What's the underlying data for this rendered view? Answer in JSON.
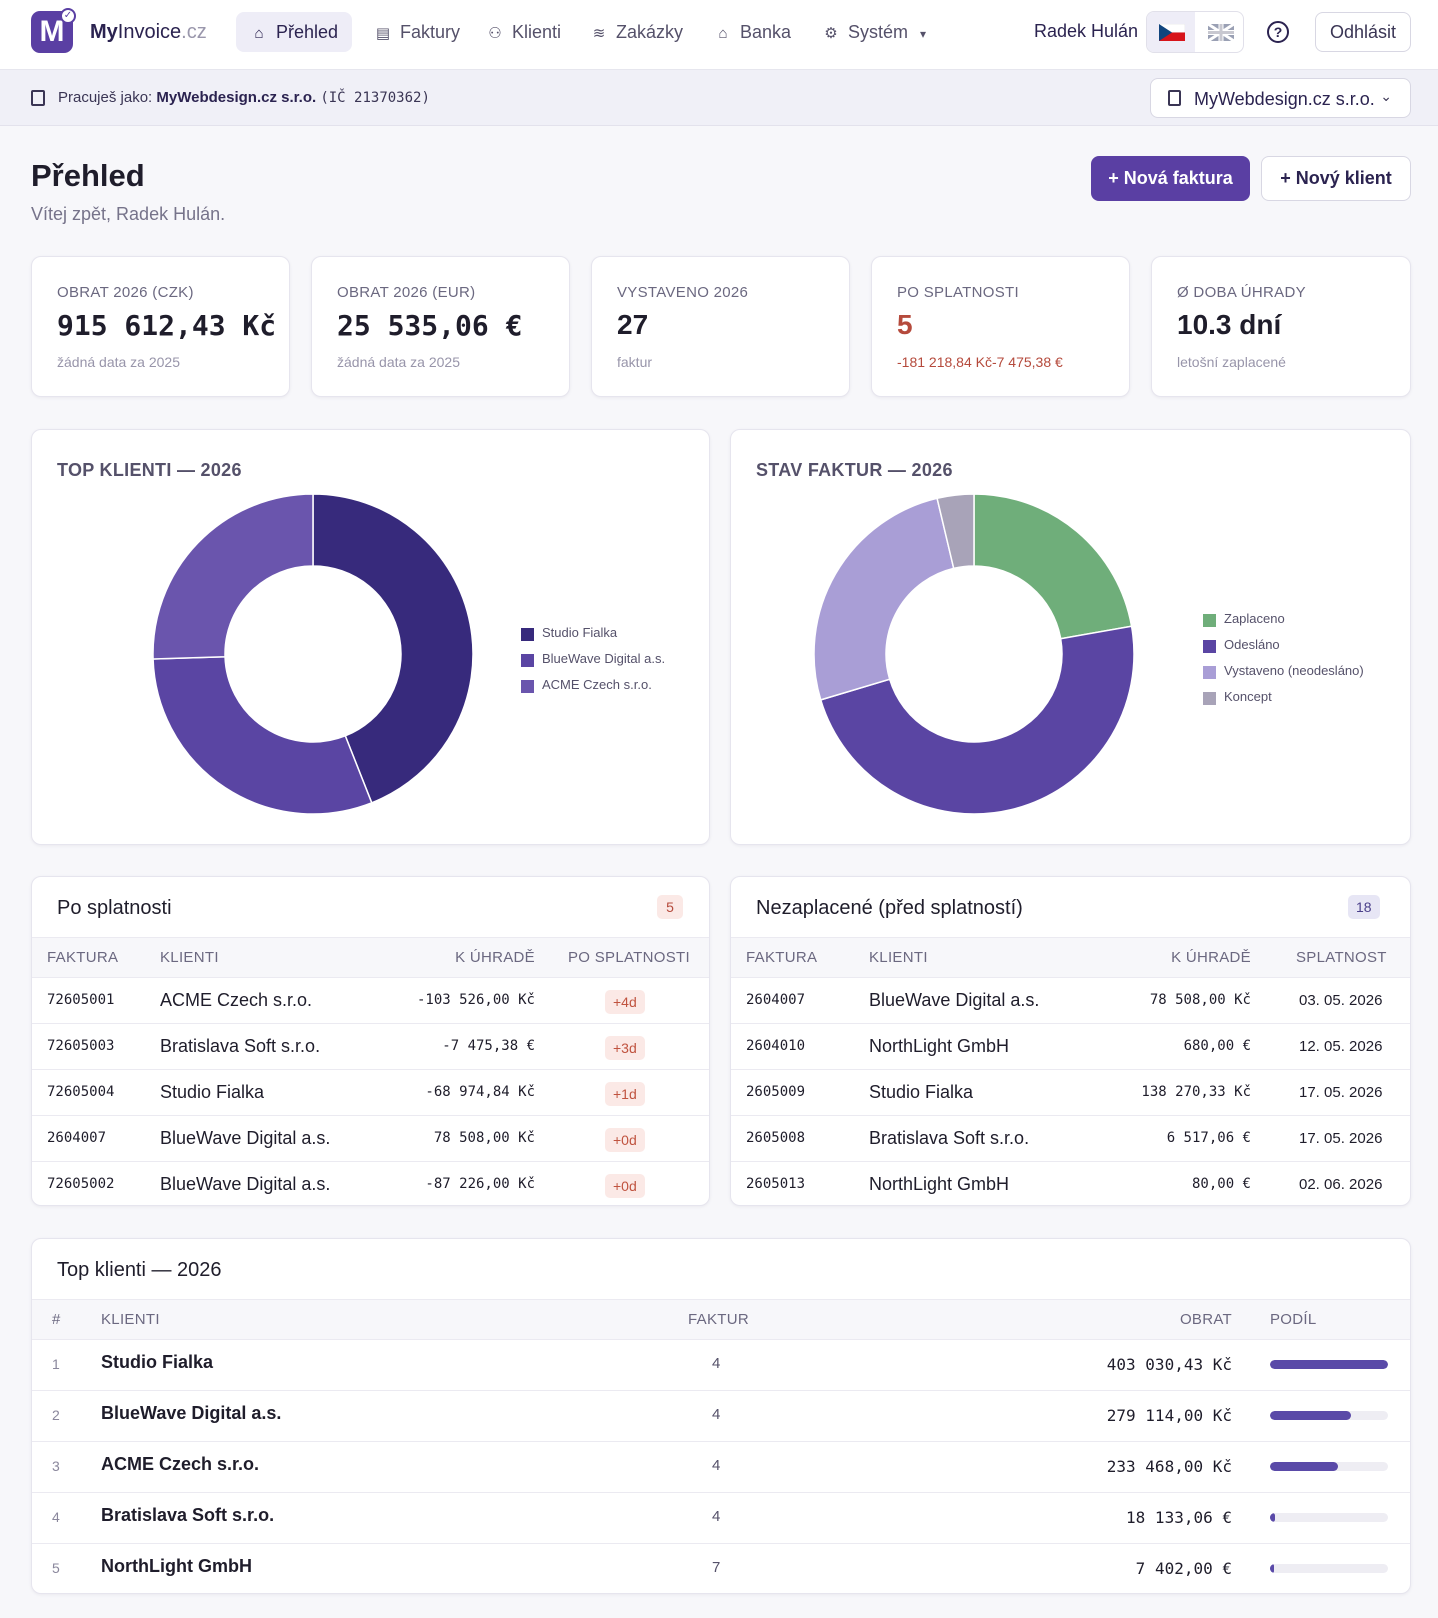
{
  "brand": {
    "my": "My",
    "invoice": "Invoice",
    "cz": ".cz",
    "logo_letter": "M"
  },
  "nav": [
    {
      "label": "Přehled",
      "icon": "home-icon",
      "active": true
    },
    {
      "label": "Faktury",
      "icon": "document-icon",
      "active": false
    },
    {
      "label": "Klienti",
      "icon": "users-icon",
      "active": false
    },
    {
      "label": "Zakázky",
      "icon": "layers-icon",
      "active": false
    },
    {
      "label": "Banka",
      "icon": "bank-icon",
      "active": false
    },
    {
      "label": "Systém",
      "icon": "gear-icon",
      "active": false,
      "dropdown": true
    }
  ],
  "user_name": "Radek Hulán",
  "logout_label": "Odhlásit",
  "help_label": "?",
  "company_bar": {
    "prefix": "Pracuješ jako:",
    "company": "MyWebdesign.cz s.r.o.",
    "ico": "(IČ 21370362)",
    "selector": "MyWebdesign.cz s.r.o."
  },
  "header": {
    "title": "Přehled",
    "subtitle": "Vítej zpět, Radek Hulán.",
    "new_invoice": "+ Nová faktura",
    "new_client": "+ Nový klient"
  },
  "stats": [
    {
      "label": "OBRAT 2026 (CZK)",
      "value": "915 612,43 Kč",
      "note": "žádná data za 2025",
      "mono": true,
      "red": false
    },
    {
      "label": "OBRAT 2026 (EUR)",
      "value": "25 535,06 €",
      "note": "žádná data za 2025",
      "mono": true,
      "red": false
    },
    {
      "label": "VYSTAVENO 2026",
      "value": "27",
      "note": "faktur",
      "mono": false,
      "red": false
    },
    {
      "label": "PO SPLATNOSTI",
      "value": "5",
      "note": "-181 218,84 Kč-7 475,38 €",
      "mono": false,
      "red": true
    },
    {
      "label": "Ø DOBA ÚHRADY",
      "value": "10.3 dní",
      "note": "letošní zaplacené",
      "mono": false,
      "red": false
    }
  ],
  "chart_data": [
    {
      "type": "pie",
      "title": "TOP KLIENTI — 2026",
      "categories": [
        "Studio Fialka",
        "BlueWave Digital a.s.",
        "ACME Czech s.r.o."
      ],
      "values": [
        403030.43,
        279114.0,
        233468.0
      ],
      "colors": [
        "#372a7c",
        "#5a45a3",
        "#6a55ad"
      ],
      "legend": "right",
      "donut": true
    },
    {
      "type": "pie",
      "title": "STAV FAKTUR — 2026",
      "categories": [
        "Zaplaceno",
        "Odesláno",
        "Vystaveno (neodesláno)",
        "Koncept"
      ],
      "values": [
        6,
        13,
        7,
        1
      ],
      "colors": [
        "#6fae7a",
        "#5a45a3",
        "#a99ed6",
        "#a8a3b8"
      ],
      "legend": "right",
      "donut": true
    }
  ],
  "overdue": {
    "title": "Po splatnosti",
    "count": "5",
    "headers": [
      "FAKTURA",
      "KLIENTI",
      "K ÚHRADĚ",
      "PO SPLATNOSTI"
    ],
    "rows": [
      {
        "invoice": "72605001",
        "client": "ACME Czech s.r.o.",
        "amount": "-103 526,00 Kč",
        "overdue": "+4d"
      },
      {
        "invoice": "72605003",
        "client": "Bratislava Soft s.r.o.",
        "amount": "-7 475,38 €",
        "overdue": "+3d"
      },
      {
        "invoice": "72605004",
        "client": "Studio Fialka",
        "amount": "-68 974,84 Kč",
        "overdue": "+1d"
      },
      {
        "invoice": "2604007",
        "client": "BlueWave Digital a.s.",
        "amount": "78 508,00 Kč",
        "overdue": "+0d"
      },
      {
        "invoice": "72605002",
        "client": "BlueWave Digital a.s.",
        "amount": "-87 226,00 Kč",
        "overdue": "+0d"
      }
    ]
  },
  "unpaid": {
    "title": "Nezaplacené (před splatností)",
    "count": "18",
    "headers": [
      "FAKTURA",
      "KLIENTI",
      "K ÚHRADĚ",
      "SPLATNOST"
    ],
    "rows": [
      {
        "invoice": "2604007",
        "client": "BlueWave Digital a.s.",
        "amount": "78 508,00 Kč",
        "due": "03. 05. 2026"
      },
      {
        "invoice": "2604010",
        "client": "NorthLight GmbH",
        "amount": "680,00 €",
        "due": "12. 05. 2026"
      },
      {
        "invoice": "2605009",
        "client": "Studio Fialka",
        "amount": "138 270,33 Kč",
        "due": "17. 05. 2026"
      },
      {
        "invoice": "2605008",
        "client": "Bratislava Soft s.r.o.",
        "amount": "6 517,06 €",
        "due": "17. 05. 2026"
      },
      {
        "invoice": "2605013",
        "client": "NorthLight GmbH",
        "amount": "80,00 €",
        "due": "02. 06. 2026"
      }
    ]
  },
  "top_clients": {
    "title": "Top klienti — 2026",
    "headers": [
      "#",
      "KLIENTI",
      "FAKTUR",
      "OBRAT",
      "PODÍL"
    ],
    "rows": [
      {
        "rank": "1",
        "client": "Studio Fialka",
        "invoices": "4",
        "turnover": "403 030,43 Kč",
        "share": 1.0
      },
      {
        "rank": "2",
        "client": "BlueWave Digital a.s.",
        "invoices": "4",
        "turnover": "279 114,00 Kč",
        "share": 0.69
      },
      {
        "rank": "3",
        "client": "ACME Czech s.r.o.",
        "invoices": "4",
        "turnover": "233 468,00 Kč",
        "share": 0.58
      },
      {
        "rank": "4",
        "client": "Bratislava Soft s.r.o.",
        "invoices": "4",
        "turnover": "18 133,06 €",
        "share": 0.045
      },
      {
        "rank": "5",
        "client": "NorthLight GmbH",
        "invoices": "7",
        "turnover": "7 402,00 €",
        "share": 0.018
      }
    ]
  }
}
